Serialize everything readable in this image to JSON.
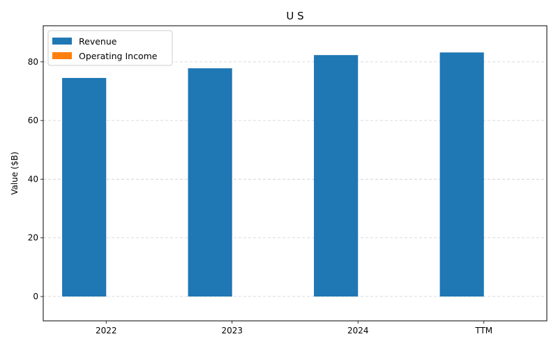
{
  "chart_data": {
    "type": "bar",
    "title": "U S",
    "xlabel": "",
    "ylabel": "Value ($B)",
    "categories": [
      "2022",
      "2023",
      "2024",
      "TTM"
    ],
    "series": [
      {
        "name": "Revenue",
        "values": [
          74.5,
          77.8,
          82.3,
          83.2
        ],
        "color": "#1f77b4"
      },
      {
        "name": "Operating Income",
        "values": [
          0,
          0,
          0,
          0
        ],
        "color": "#ff7f0e"
      }
    ],
    "ylim": [
      -8.3,
      92.3
    ],
    "yticks": [
      0,
      20,
      40,
      60,
      80
    ],
    "grid": true,
    "legend": "top-left"
  }
}
